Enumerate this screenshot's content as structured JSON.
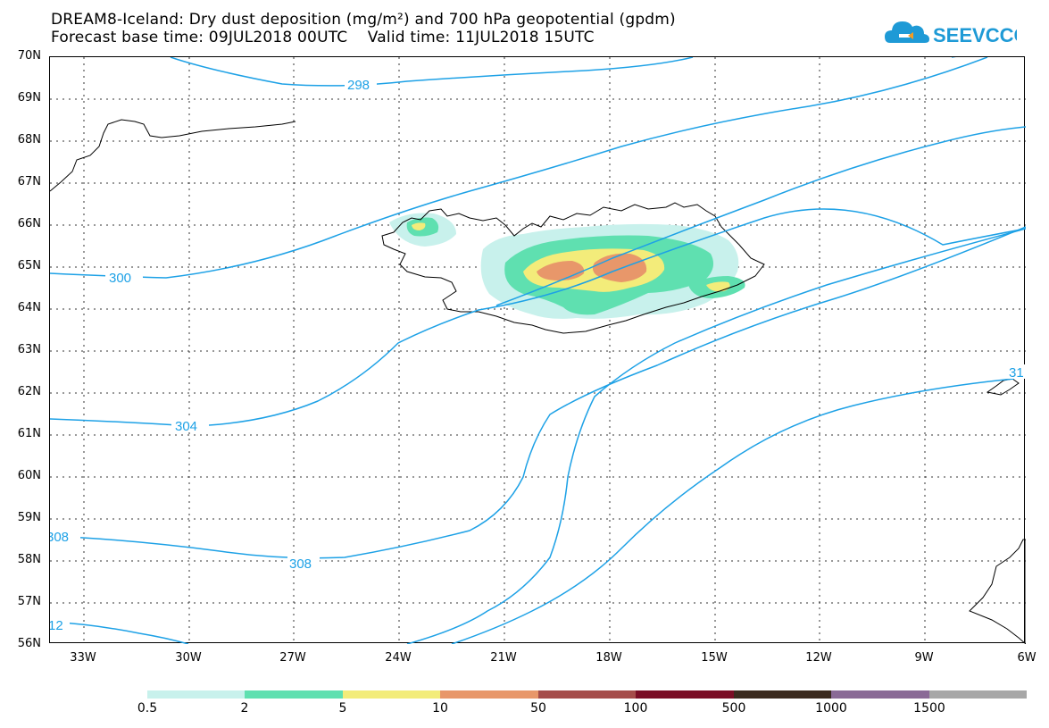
{
  "title": {
    "line1": "DREAM8-Iceland: Dry dust deposition (mg/m²) and 700 hPa geopotential (gpdm)",
    "line2": "Forecast base time: 09JUL2018 00UTC    Valid time: 11JUL2018 15UTC"
  },
  "logo": {
    "text": "SEEVCCC",
    "icon": "cloud-logo-icon",
    "color": "#1e9ad6"
  },
  "map": {
    "lat_labels": [
      "70N",
      "69N",
      "68N",
      "67N",
      "66N",
      "65N",
      "64N",
      "63N",
      "62N",
      "61N",
      "60N",
      "59N",
      "58N",
      "57N",
      "56N"
    ],
    "lon_labels": [
      "33W",
      "30W",
      "27W",
      "24W",
      "21W",
      "18W",
      "15W",
      "12W",
      "9W",
      "6W"
    ],
    "contour_color": "#1da1e6",
    "contour_labels": [
      "298",
      "300",
      "304",
      "308",
      "308",
      "12",
      "31"
    ]
  },
  "colorbar": {
    "colors": [
      "#c8f1ec",
      "#5fe0b0",
      "#f3ec7a",
      "#e8976a",
      "#a54c4a",
      "#7a0d25",
      "#3a2a1e",
      "#8a6a96",
      "#a7a7a7"
    ],
    "ticks": [
      "0.5",
      "2",
      "5",
      "10",
      "50",
      "100",
      "500",
      "1000",
      "1500"
    ]
  }
}
